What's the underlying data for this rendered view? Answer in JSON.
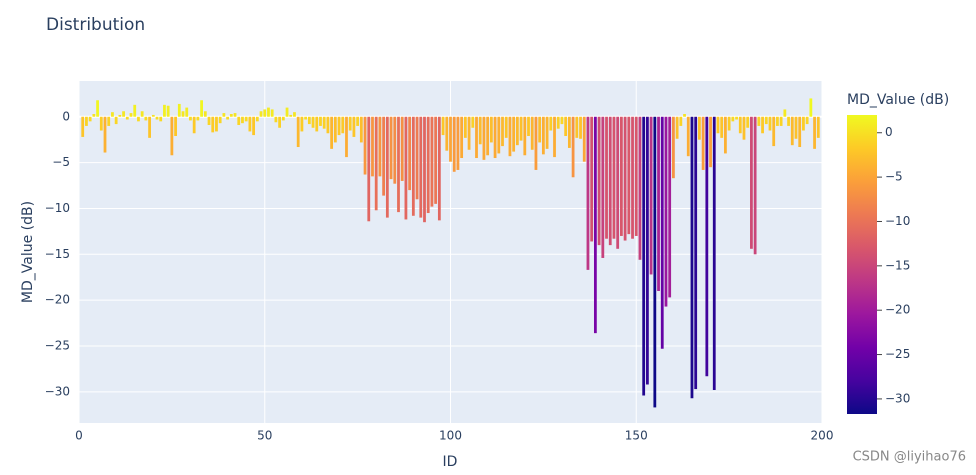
{
  "chart_data": {
    "type": "bar",
    "title": "Distribution",
    "xlabel": "ID",
    "ylabel": "MD_Value (dB)",
    "colorbar_title": "MD_Value (dB)",
    "watermark": "CSDN @liyihao76",
    "x": [
      1,
      2,
      3,
      4,
      5,
      6,
      7,
      8,
      9,
      10,
      11,
      12,
      13,
      14,
      15,
      16,
      17,
      18,
      19,
      20,
      21,
      22,
      23,
      24,
      25,
      26,
      27,
      28,
      29,
      30,
      31,
      32,
      33,
      34,
      35,
      36,
      37,
      38,
      39,
      40,
      41,
      42,
      43,
      44,
      45,
      46,
      47,
      48,
      49,
      50,
      51,
      52,
      53,
      54,
      55,
      56,
      57,
      58,
      59,
      60,
      61,
      62,
      63,
      64,
      65,
      66,
      67,
      68,
      69,
      70,
      71,
      72,
      73,
      74,
      75,
      76,
      77,
      78,
      79,
      80,
      81,
      82,
      83,
      84,
      85,
      86,
      87,
      88,
      89,
      90,
      91,
      92,
      93,
      94,
      95,
      96,
      97,
      98,
      99,
      100,
      101,
      102,
      103,
      104,
      105,
      106,
      107,
      108,
      109,
      110,
      111,
      112,
      113,
      114,
      115,
      116,
      117,
      118,
      119,
      120,
      121,
      122,
      123,
      124,
      125,
      126,
      127,
      128,
      129,
      130,
      131,
      132,
      133,
      134,
      135,
      136,
      137,
      138,
      139,
      140,
      141,
      142,
      143,
      144,
      145,
      146,
      147,
      148,
      149,
      150,
      151,
      152,
      153,
      154,
      155,
      156,
      157,
      158,
      159,
      160,
      161,
      162,
      163,
      164,
      165,
      166,
      167,
      168,
      169,
      170,
      171,
      172,
      173,
      174,
      175,
      176,
      177,
      178,
      179,
      180,
      181,
      182,
      183,
      184,
      185,
      186,
      187,
      188,
      189,
      190,
      191,
      192,
      193,
      194,
      195,
      196,
      197,
      198,
      199
    ],
    "values": [
      -2.2,
      -1.0,
      -0.5,
      0.3,
      1.8,
      -1.5,
      -3.9,
      -1.0,
      0.5,
      -0.8,
      0.2,
      0.6,
      -0.3,
      0.4,
      1.3,
      -0.5,
      0.6,
      -0.4,
      -2.3,
      0.2,
      -0.3,
      -0.5,
      1.3,
      1.2,
      -4.2,
      -2.1,
      1.4,
      0.6,
      1.0,
      -0.4,
      -1.8,
      -0.4,
      1.8,
      0.6,
      -0.9,
      -1.7,
      -1.6,
      -0.7,
      0.4,
      -0.3,
      0.3,
      0.4,
      -0.9,
      -0.7,
      -0.5,
      -1.6,
      -2.0,
      -0.5,
      0.6,
      0.8,
      1.0,
      0.8,
      -0.6,
      -1.2,
      -0.4,
      1.0,
      0.2,
      0.5,
      -3.3,
      -1.6,
      -0.3,
      -0.8,
      -1.2,
      -1.6,
      -1.0,
      -1.3,
      -1.8,
      -3.5,
      -2.8,
      -2.0,
      -1.8,
      -4.4,
      -1.5,
      -2.2,
      -1.0,
      -2.8,
      -6.3,
      -11.4,
      -6.5,
      -10.2,
      -6.5,
      -8.6,
      -11.0,
      -6.8,
      -7.3,
      -10.4,
      -7.0,
      -11.2,
      -8.0,
      -10.8,
      -9.0,
      -11.0,
      -11.5,
      -10.5,
      -9.8,
      -9.5,
      -11.3,
      -2.0,
      -3.7,
      -4.9,
      -6.0,
      -5.8,
      -4.5,
      -2.3,
      -3.6,
      -1.2,
      -4.5,
      -3.0,
      -4.7,
      -4.2,
      -2.8,
      -4.5,
      -4.0,
      -3.2,
      -2.3,
      -4.3,
      -3.8,
      -3.1,
      -2.6,
      -4.2,
      -2.1,
      -3.6,
      -5.8,
      -2.8,
      -4.1,
      -3.5,
      -1.5,
      -4.4,
      -1.3,
      -0.8,
      -2.1,
      -3.4,
      -6.6,
      -2.3,
      -2.4,
      -4.9,
      -16.7,
      -13.6,
      -23.6,
      -14.0,
      -15.4,
      -13.3,
      -14.0,
      -13.3,
      -14.4,
      -13.0,
      -13.5,
      -12.8,
      -13.3,
      -13.0,
      -15.6,
      -30.4,
      -29.2,
      -17.2,
      -31.7,
      -19.0,
      -25.3,
      -20.7,
      -19.7,
      -6.7,
      -2.4,
      -1.0,
      0.3,
      -4.3,
      -30.7,
      -29.7,
      -2.5,
      -5.8,
      -28.3,
      -5.5,
      -29.8,
      -1.8,
      -2.3,
      -4.0,
      -1.5,
      -0.5,
      -0.3,
      -1.8,
      -2.5,
      -1.2,
      -14.4,
      -15.0,
      -1.0,
      -1.8,
      -0.8,
      -1.5,
      -3.2,
      -1.0,
      -1.0,
      0.8,
      -1.0,
      -3.1,
      -2.4,
      -3.3,
      -1.5,
      -0.8,
      2.0,
      -3.5,
      -2.3
    ],
    "colorscale": [
      "#0d0887",
      "#46039f",
      "#7201a8",
      "#9c179e",
      "#bd3786",
      "#d8576b",
      "#ed7953",
      "#fb9f3a",
      "#fdca26",
      "#f0f921"
    ],
    "clim": [
      -31.7,
      2.0
    ],
    "cticks": [
      0,
      {
        "value": -5,
        "label": "−5"
      },
      {
        "value": -10,
        "label": "−10"
      },
      {
        "value": -15,
        "label": "−15"
      },
      {
        "value": -20,
        "label": "−20"
      },
      {
        "value": -25,
        "label": "−25"
      },
      {
        "value": -30,
        "label": "−30"
      }
    ],
    "xlim": [
      0,
      200
    ],
    "xticks": [
      0,
      50,
      100,
      150,
      200
    ],
    "ylim": [
      -33.4,
      3.9
    ],
    "yticks": [
      0,
      {
        "value": -5,
        "label": "−5"
      },
      {
        "value": -10,
        "label": "−10"
      },
      {
        "value": -15,
        "label": "−15"
      },
      {
        "value": -20,
        "label": "−20"
      },
      {
        "value": -25,
        "label": "−25"
      },
      {
        "value": -30,
        "label": "−30"
      }
    ],
    "grid": true
  }
}
